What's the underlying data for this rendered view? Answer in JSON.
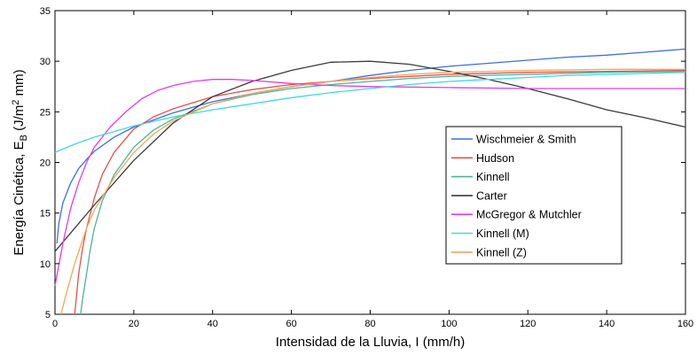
{
  "chart_data": {
    "type": "line",
    "xlabel": "Intensidad de la Lluvia, I (mm/h)",
    "ylabel_parts": [
      "Energía Cinética, E",
      "B",
      " (J/m",
      "2",
      " mm)"
    ],
    "xlim": [
      0,
      160
    ],
    "ylim": [
      5,
      35
    ],
    "x_ticks": [
      0,
      20,
      40,
      60,
      80,
      100,
      120,
      140,
      160
    ],
    "y_ticks": [
      5,
      10,
      15,
      20,
      25,
      30,
      35
    ],
    "grid": false,
    "legend_position": "center-right",
    "series": [
      {
        "name": "Wischmeier & Smith",
        "color": "#3b6fe0",
        "points": [
          [
            0.5,
            12
          ],
          [
            1,
            14
          ],
          [
            2,
            16
          ],
          [
            4,
            18
          ],
          [
            6,
            19.4
          ],
          [
            8,
            20.3
          ],
          [
            10,
            21.1
          ],
          [
            15,
            22.5
          ],
          [
            20,
            23.5
          ],
          [
            30,
            24.9
          ],
          [
            40,
            26
          ],
          [
            50,
            26.8
          ],
          [
            60,
            27.5
          ],
          [
            70,
            28
          ],
          [
            80,
            28.6
          ],
          [
            90,
            29.1
          ],
          [
            100,
            29.5
          ],
          [
            110,
            29.8
          ],
          [
            120,
            30.1
          ],
          [
            130,
            30.4
          ],
          [
            140,
            30.6
          ],
          [
            150,
            30.9
          ],
          [
            160,
            31.2
          ]
        ]
      },
      {
        "name": "Hudson",
        "color": "#e8504a",
        "points": [
          [
            5,
            5
          ],
          [
            6,
            9
          ],
          [
            7,
            11.5
          ],
          [
            8,
            13.5
          ],
          [
            10,
            16.5
          ],
          [
            12,
            18.8
          ],
          [
            15,
            21
          ],
          [
            20,
            23.3
          ],
          [
            25,
            24.5
          ],
          [
            30,
            25.3
          ],
          [
            40,
            26.5
          ],
          [
            50,
            27.2
          ],
          [
            60,
            27.7
          ],
          [
            70,
            28
          ],
          [
            80,
            28.3
          ],
          [
            90,
            28.5
          ],
          [
            100,
            28.7
          ],
          [
            120,
            28.9
          ],
          [
            140,
            29
          ],
          [
            160,
            29.1
          ]
        ]
      },
      {
        "name": "Kinnell",
        "color": "#4bb39a",
        "points": [
          [
            6.5,
            5
          ],
          [
            7,
            6.5
          ],
          [
            8,
            9
          ],
          [
            9,
            11.5
          ],
          [
            10,
            13.5
          ],
          [
            12,
            16.2
          ],
          [
            15,
            18.8
          ],
          [
            20,
            21.5
          ],
          [
            25,
            23.2
          ],
          [
            30,
            24.3
          ],
          [
            40,
            25.8
          ],
          [
            50,
            26.7
          ],
          [
            60,
            27.3
          ],
          [
            70,
            27.7
          ],
          [
            80,
            28
          ],
          [
            90,
            28.3
          ],
          [
            100,
            28.5
          ],
          [
            120,
            28.7
          ],
          [
            140,
            28.9
          ],
          [
            160,
            29
          ]
        ]
      },
      {
        "name": "Carter",
        "color": "#3a3a3a",
        "points": [
          [
            0,
            11.2
          ],
          [
            5,
            13.5
          ],
          [
            10,
            15.8
          ],
          [
            15,
            18
          ],
          [
            20,
            20.2
          ],
          [
            30,
            23.9
          ],
          [
            40,
            26.5
          ],
          [
            50,
            28
          ],
          [
            60,
            29.1
          ],
          [
            70,
            29.9
          ],
          [
            80,
            30
          ],
          [
            90,
            29.7
          ],
          [
            100,
            29
          ],
          [
            110,
            28.2
          ],
          [
            120,
            27.3
          ],
          [
            130,
            26.3
          ],
          [
            140,
            25.2
          ],
          [
            150,
            24.4
          ],
          [
            160,
            23.5
          ]
        ]
      },
      {
        "name": "McGregor & Mutchler",
        "color": "#e33ce3",
        "points": [
          [
            0,
            7.8
          ],
          [
            2,
            12
          ],
          [
            4,
            15.5
          ],
          [
            6,
            18
          ],
          [
            8,
            20
          ],
          [
            10,
            21.5
          ],
          [
            14,
            23.5
          ],
          [
            18,
            25
          ],
          [
            22,
            26.3
          ],
          [
            26,
            27.1
          ],
          [
            30,
            27.6
          ],
          [
            35,
            28
          ],
          [
            40,
            28.2
          ],
          [
            45,
            28.2
          ],
          [
            50,
            28.1
          ],
          [
            60,
            27.8
          ],
          [
            70,
            27.6
          ],
          [
            80,
            27.5
          ],
          [
            100,
            27.4
          ],
          [
            120,
            27.3
          ],
          [
            140,
            27.3
          ],
          [
            160,
            27.3
          ]
        ]
      },
      {
        "name": "Kinnell (M)",
        "color": "#3fd8e8",
        "points": [
          [
            0,
            21
          ],
          [
            5,
            21.8
          ],
          [
            10,
            22.5
          ],
          [
            20,
            23.6
          ],
          [
            30,
            24.5
          ],
          [
            40,
            25.2
          ],
          [
            50,
            25.8
          ],
          [
            60,
            26.4
          ],
          [
            70,
            26.9
          ],
          [
            80,
            27.3
          ],
          [
            90,
            27.7
          ],
          [
            100,
            28
          ],
          [
            110,
            28.2
          ],
          [
            120,
            28.4
          ],
          [
            130,
            28.6
          ],
          [
            140,
            28.7
          ],
          [
            150,
            28.8
          ],
          [
            160,
            28.9
          ]
        ]
      },
      {
        "name": "Kinnell (Z)",
        "color": "#f2a75a",
        "points": [
          [
            1.5,
            5
          ],
          [
            3,
            7.2
          ],
          [
            5,
            10
          ],
          [
            8,
            13.5
          ],
          [
            10,
            15.3
          ],
          [
            15,
            18.5
          ],
          [
            20,
            21
          ],
          [
            25,
            22.8
          ],
          [
            30,
            24.1
          ],
          [
            40,
            25.8
          ],
          [
            50,
            26.8
          ],
          [
            60,
            27.5
          ],
          [
            70,
            28
          ],
          [
            80,
            28.4
          ],
          [
            90,
            28.7
          ],
          [
            100,
            28.9
          ],
          [
            110,
            29
          ],
          [
            120,
            29.1
          ],
          [
            140,
            29.2
          ],
          [
            160,
            29.2
          ]
        ]
      }
    ]
  }
}
